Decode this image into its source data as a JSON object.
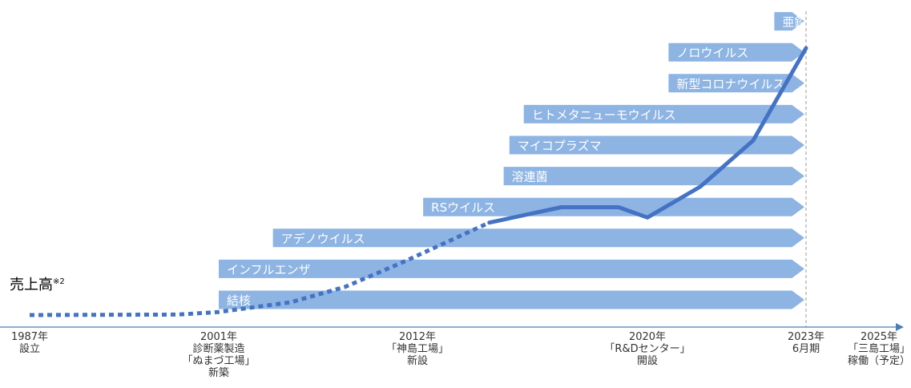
{
  "colors": {
    "arrow": "#8db4e2",
    "line": "#4472c4",
    "axis": "#4a7ebb",
    "text": "#333333",
    "label_text": "#ffffff",
    "marker_line": "#999999"
  },
  "chart_data": {
    "type": "line",
    "title": "",
    "ylabel": "売上高",
    "ylabel_note": "※2",
    "milestones": [
      {
        "year": 1987,
        "lines": [
          "1987年",
          "設立"
        ]
      },
      {
        "year": 2001,
        "lines": [
          "2001年",
          "診断薬製造",
          "「ぬまづ工場」",
          "新築"
        ]
      },
      {
        "year": 2012,
        "lines": [
          "2012年",
          "「神島工場」",
          "新設"
        ]
      },
      {
        "year": 2020,
        "lines": [
          "2020年",
          "「R&Dセンター」",
          "開設"
        ]
      },
      {
        "year": 2023,
        "lines": [
          "2023年",
          "6月期"
        ]
      },
      {
        "year": 2025,
        "lines": [
          "2025年",
          "「三島工場」",
          "稼働（予定）"
        ]
      }
    ],
    "products": [
      {
        "label": "結核",
        "start_year": 2001.0
      },
      {
        "label": "インフルエンザ",
        "start_year": 2001.0
      },
      {
        "label": "アデノウイルス",
        "start_year": 2004.0
      },
      {
        "label": "RSウイルス",
        "start_year": 2012.2
      },
      {
        "label": "溶連菌",
        "start_year": 2015.0
      },
      {
        "label": "マイコプラズマ",
        "start_year": 2015.2
      },
      {
        "label": "ヒトメタニューモウイルス",
        "start_year": 2015.7
      },
      {
        "label": "新型コロナウイルス",
        "start_year": 2020.4
      },
      {
        "label": "ノロウイルス",
        "start_year": 2020.4
      },
      {
        "label": "亜鉛濃度",
        "start_year": 2022.4
      }
    ],
    "series": [
      {
        "style": "dotted",
        "points": [
          {
            "x": 1987.0,
            "y": 0.0
          },
          {
            "x": 1998.0,
            "y": 0.1
          },
          {
            "x": 2001.0,
            "y": 0.6
          },
          {
            "x": 2005.0,
            "y": 2.5
          },
          {
            "x": 2008.0,
            "y": 5.5
          },
          {
            "x": 2011.0,
            "y": 10.0
          },
          {
            "x": 2014.5,
            "y": 18.0
          }
        ]
      },
      {
        "style": "solid",
        "points": [
          {
            "x": 2014.5,
            "y": 18.0
          },
          {
            "x": 2017.0,
            "y": 21.0
          },
          {
            "x": 2019.0,
            "y": 21.0
          },
          {
            "x": 2020.0,
            "y": 19.0
          },
          {
            "x": 2021.0,
            "y": 25.0
          },
          {
            "x": 2022.0,
            "y": 34.0
          },
          {
            "x": 2023.0,
            "y": 52.0
          }
        ]
      }
    ]
  }
}
